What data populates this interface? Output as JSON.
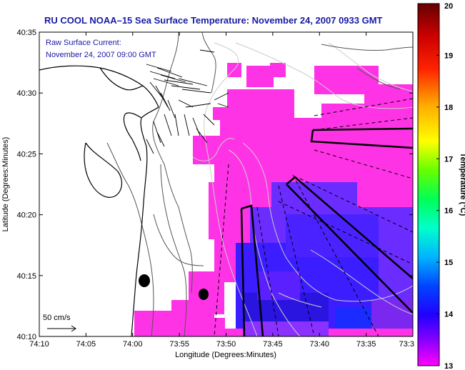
{
  "chart_data": {
    "type": "heatmap",
    "title": "RU COOL  NOAA–15  Sea Surface Temperature:  November 24, 2007 0933 GMT",
    "overlay_label_line1": "Raw Surface Current:",
    "overlay_label_line2": "November 24, 2007 09:00 GMT",
    "xlabel": "Longitude (Degrees:Minutes)",
    "ylabel": "Latitude (Degrees:Minutes)",
    "x_ticks": [
      "74:10",
      "74:05",
      "74:00",
      "73:55",
      "73:50",
      "73:45",
      "73:40",
      "73:35",
      "73:3"
    ],
    "y_ticks": [
      "40:35",
      "40:30",
      "40:25",
      "40:20",
      "40:15",
      "40:10"
    ],
    "colorbar": {
      "label": "Temperature (°C)",
      "ticks": [
        "20",
        "19",
        "18",
        "17",
        "16",
        "15",
        "14",
        "13"
      ],
      "min": 13,
      "max": 20,
      "colors": [
        "#ff00ff",
        "#3300ff",
        "#0033ff",
        "#00ccff",
        "#00ff66",
        "#66ff00",
        "#ffff00",
        "#ff9900",
        "#ff0000",
        "#cc0000",
        "#660000"
      ]
    },
    "vector_scale_label": "50 cm/s",
    "colors": {
      "title": "#1a1aa6",
      "land": "#ffffff",
      "magenta": "#ff33e6",
      "blue": "#3a1dff"
    }
  }
}
